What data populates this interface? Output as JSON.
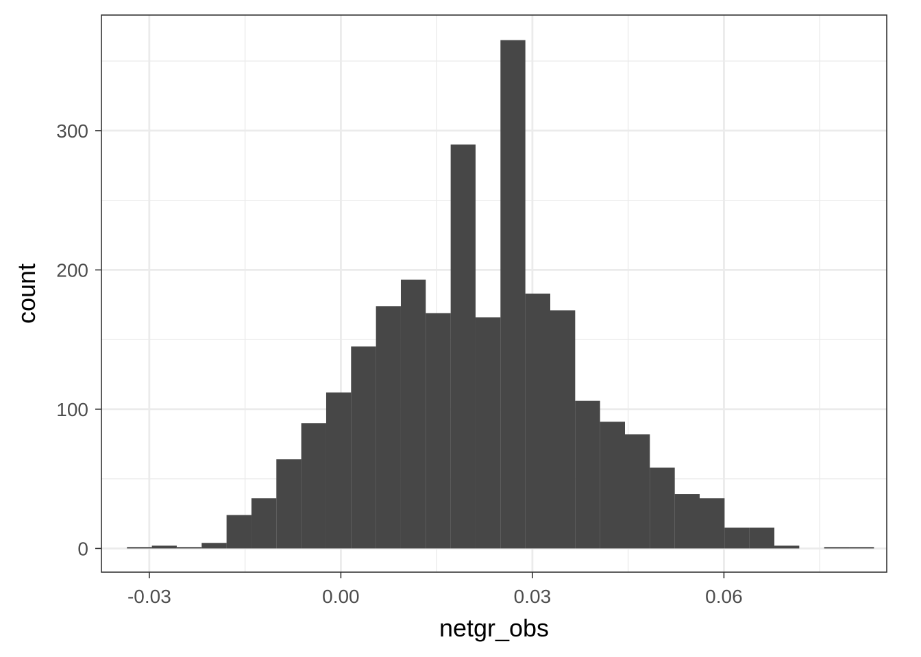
{
  "chart_data": {
    "type": "bar",
    "subtype": "histogram",
    "title": "",
    "xlabel": "netgr_obs",
    "ylabel": "count",
    "xlim": [
      -0.0375,
      0.0855
    ],
    "ylim": [
      -17,
      383
    ],
    "x_ticks": [
      -0.03,
      0.0,
      0.03,
      0.06
    ],
    "x_tick_labels": [
      "-0.03",
      "0.00",
      "0.03",
      "0.06"
    ],
    "x_minor_ticks": [
      -0.015,
      0.015,
      0.045,
      0.075
    ],
    "y_ticks": [
      0,
      100,
      200,
      300
    ],
    "y_tick_labels": [
      "0",
      "100",
      "200",
      "300"
    ],
    "y_minor_ticks": [
      50,
      150,
      250,
      350
    ],
    "grid": true,
    "theme": "bw",
    "bar_color": "#474747",
    "bins": [
      {
        "x0": -0.0335,
        "x1": -0.0296,
        "count": 1
      },
      {
        "x0": -0.0296,
        "x1": -0.0257,
        "count": 2
      },
      {
        "x0": -0.0257,
        "x1": -0.0218,
        "count": 1
      },
      {
        "x0": -0.0218,
        "x1": -0.0179,
        "count": 4
      },
      {
        "x0": -0.0179,
        "x1": -0.014,
        "count": 24
      },
      {
        "x0": -0.014,
        "x1": -0.0101,
        "count": 36
      },
      {
        "x0": -0.0101,
        "x1": -0.0062,
        "count": 64
      },
      {
        "x0": -0.0062,
        "x1": -0.0023,
        "count": 90
      },
      {
        "x0": -0.0023,
        "x1": 0.0016,
        "count": 112
      },
      {
        "x0": 0.0016,
        "x1": 0.0055,
        "count": 145
      },
      {
        "x0": 0.0055,
        "x1": 0.0094,
        "count": 174
      },
      {
        "x0": 0.0094,
        "x1": 0.0133,
        "count": 193
      },
      {
        "x0": 0.0133,
        "x1": 0.0172,
        "count": 169
      },
      {
        "x0": 0.0172,
        "x1": 0.0211,
        "count": 290
      },
      {
        "x0": 0.0211,
        "x1": 0.025,
        "count": 166
      },
      {
        "x0": 0.025,
        "x1": 0.0289,
        "count": 365
      },
      {
        "x0": 0.0289,
        "x1": 0.0328,
        "count": 183
      },
      {
        "x0": 0.0328,
        "x1": 0.0367,
        "count": 171
      },
      {
        "x0": 0.0367,
        "x1": 0.0406,
        "count": 106
      },
      {
        "x0": 0.0406,
        "x1": 0.0445,
        "count": 91
      },
      {
        "x0": 0.0445,
        "x1": 0.0484,
        "count": 82
      },
      {
        "x0": 0.0484,
        "x1": 0.0523,
        "count": 58
      },
      {
        "x0": 0.0523,
        "x1": 0.0562,
        "count": 39
      },
      {
        "x0": 0.0562,
        "x1": 0.0601,
        "count": 36
      },
      {
        "x0": 0.0601,
        "x1": 0.064,
        "count": 15
      },
      {
        "x0": 0.064,
        "x1": 0.0679,
        "count": 15
      },
      {
        "x0": 0.0679,
        "x1": 0.0718,
        "count": 2
      },
      {
        "x0": 0.0718,
        "x1": 0.0757,
        "count": 0
      },
      {
        "x0": 0.0757,
        "x1": 0.0796,
        "count": 1
      },
      {
        "x0": 0.0796,
        "x1": 0.0835,
        "count": 1
      }
    ]
  }
}
